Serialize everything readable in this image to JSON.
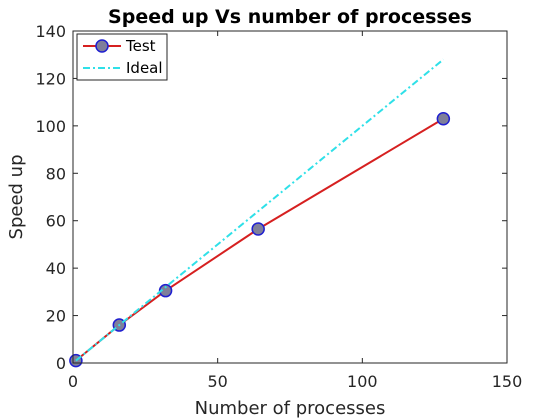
{
  "chart_data": {
    "type": "line",
    "title": "Speed up Vs number of processes",
    "xlabel": "Number of processes",
    "ylabel": "Speed up",
    "xlim": [
      0,
      150
    ],
    "ylim": [
      0,
      140
    ],
    "xticks": [
      0,
      50,
      100,
      150
    ],
    "yticks": [
      0,
      20,
      40,
      60,
      80,
      100,
      120,
      140
    ],
    "grid": false,
    "box": true,
    "legend_position": "top-left",
    "series": [
      {
        "name": "Test",
        "color": "#d62020",
        "marker": "circle",
        "marker_fill": "#7f7f9a",
        "marker_edge": "#1f1fd0",
        "line_style": "solid",
        "x": [
          1,
          16,
          32,
          64,
          128
        ],
        "y": [
          1,
          16,
          30.5,
          56.5,
          103
        ]
      },
      {
        "name": "Ideal",
        "color": "#2fe0e8",
        "marker": "none",
        "line_style": "dash-dot",
        "x": [
          1,
          16,
          32,
          64,
          128
        ],
        "y": [
          1,
          16,
          32,
          64,
          128
        ]
      }
    ]
  }
}
